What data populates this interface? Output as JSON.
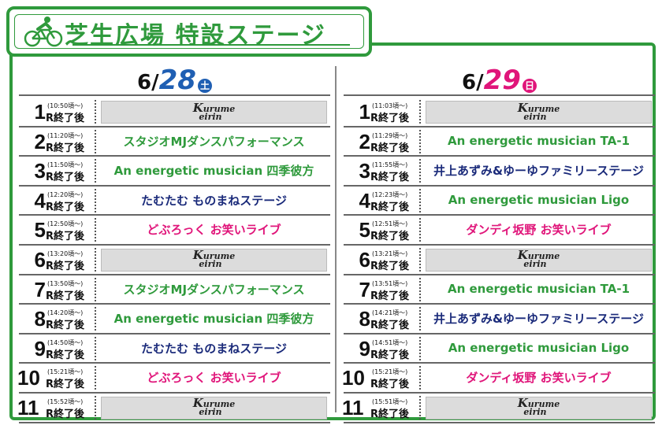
{
  "header": {
    "title": "芝生広場 特設ステージ",
    "icon": "cyclist-icon"
  },
  "colors": {
    "green": "#2f9a3c",
    "navy": "#1a2a7a",
    "magenta": "#e0157a",
    "blue": "#1f5fb3",
    "pink": "#e0157a"
  },
  "days": [
    {
      "date_md": "6/",
      "date_day": "28",
      "dow": "土",
      "day_color": "#1f5fb3",
      "rows": [
        {
          "num": "1",
          "time": "(10:50頃～)",
          "after": "R終了後",
          "event": "",
          "type": "kurume",
          "logo": "Kurume Keirin"
        },
        {
          "num": "2",
          "time": "(11:20頃～)",
          "after": "R終了後",
          "event": "スタジオMJダンスパフォーマンス",
          "type": "green"
        },
        {
          "num": "3",
          "time": "(11:50頃～)",
          "after": "R終了後",
          "event": "An energetic musician 四季彼方",
          "type": "green"
        },
        {
          "num": "4",
          "time": "(12:20頃～)",
          "after": "R終了後",
          "event": "たむたむ ものまねステージ",
          "type": "navy"
        },
        {
          "num": "5",
          "time": "(12:50頃～)",
          "after": "R終了後",
          "event": "どぶろっく お笑いライブ",
          "type": "magenta"
        },
        {
          "num": "6",
          "time": "(13:20頃～)",
          "after": "R終了後",
          "event": "",
          "type": "kurume",
          "logo": "Kurume Keirin"
        },
        {
          "num": "7",
          "time": "(13:50頃～)",
          "after": "R終了後",
          "event": "スタジオMJダンスパフォーマンス",
          "type": "green"
        },
        {
          "num": "8",
          "time": "(14:20頃～)",
          "after": "R終了後",
          "event": "An energetic musician 四季彼方",
          "type": "green"
        },
        {
          "num": "9",
          "time": "(14:50頃～)",
          "after": "R終了後",
          "event": "たむたむ ものまねステージ",
          "type": "navy"
        },
        {
          "num": "10",
          "time": "(15:21頃～)",
          "after": "R終了後",
          "event": "どぶろっく お笑いライブ",
          "type": "magenta"
        },
        {
          "num": "11",
          "time": "(15:52頃～)",
          "after": "R終了後",
          "event": "",
          "type": "kurume",
          "logo": "Kurume Keirin"
        }
      ]
    },
    {
      "date_md": "6/",
      "date_day": "29",
      "dow": "日",
      "day_color": "#e0157a",
      "rows": [
        {
          "num": "1",
          "time": "(11:03頃～)",
          "after": "R終了後",
          "event": "",
          "type": "kurume",
          "logo": "Kurume Keirin"
        },
        {
          "num": "2",
          "time": "(11:29頃～)",
          "after": "R終了後",
          "event": "An energetic musician TA-1",
          "type": "green"
        },
        {
          "num": "3",
          "time": "(11:55頃～)",
          "after": "R終了後",
          "event": "井上あずみ&ゆーゆファミリーステージ",
          "type": "navy"
        },
        {
          "num": "4",
          "time": "(12:23頃～)",
          "after": "R終了後",
          "event": "An energetic musician Ligo",
          "type": "green"
        },
        {
          "num": "5",
          "time": "(12:51頃～)",
          "after": "R終了後",
          "event": "ダンディ坂野 お笑いライブ",
          "type": "magenta"
        },
        {
          "num": "6",
          "time": "(13:21頃～)",
          "after": "R終了後",
          "event": "",
          "type": "kurume",
          "logo": "Kurume Keirin"
        },
        {
          "num": "7",
          "time": "(13:51頃～)",
          "after": "R終了後",
          "event": "An energetic musician TA-1",
          "type": "green"
        },
        {
          "num": "8",
          "time": "(14:21頃～)",
          "after": "R終了後",
          "event": "井上あずみ&ゆーゆファミリーステージ",
          "type": "navy"
        },
        {
          "num": "9",
          "time": "(14:51頃～)",
          "after": "R終了後",
          "event": "An energetic musician Ligo",
          "type": "green"
        },
        {
          "num": "10",
          "time": "(15:21頃～)",
          "after": "R終了後",
          "event": "ダンディ坂野 お笑いライブ",
          "type": "magenta"
        },
        {
          "num": "11",
          "time": "(15:51頃～)",
          "after": "R終了後",
          "event": "",
          "type": "kurume",
          "logo": "Kurume Keirin"
        }
      ]
    }
  ]
}
